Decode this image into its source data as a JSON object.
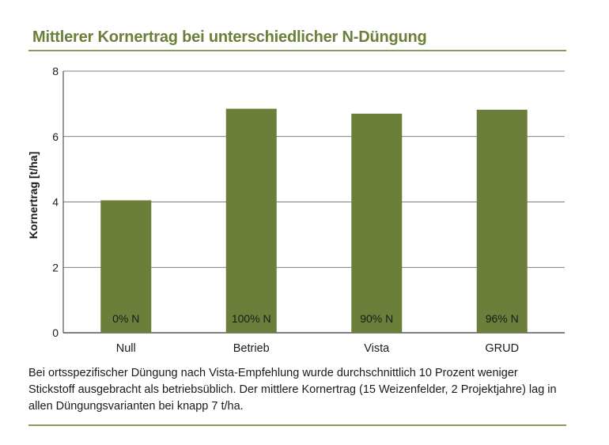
{
  "title": "Mittlerer Kornertrag bei unterschiedlicher N-Düngung",
  "caption": "Bei ortsspezifischer Düngung nach Vista-Empfehlung wurde durchschnittlich 10 Prozent weniger Stickstoff ausgebracht als betriebsüblich. Der mittlere Kornertrag (15 Weizenfelder, 2 Projektjahre) lag in allen Düngungsvarianten bei knapp 7 t/ha.",
  "colors": {
    "bar": "#6b7f3a",
    "accent": "#6b7f3a",
    "rule": "#8a9a5b",
    "grid": "#555555"
  },
  "chart_data": {
    "type": "bar",
    "title": "Mittlerer Kornertrag bei unterschiedlicher N-Düngung",
    "xlabel": "",
    "ylabel": "Kornertrag [t/ha]",
    "categories": [
      "Null",
      "Betrieb",
      "Vista",
      "GRUD"
    ],
    "values": [
      4.05,
      6.85,
      6.7,
      6.82
    ],
    "bar_labels": [
      "0% N",
      "100% N",
      "90% N",
      "96% N"
    ],
    "ylim": [
      0,
      8
    ],
    "yticks": [
      0,
      2,
      4,
      6,
      8
    ],
    "grid": true
  }
}
